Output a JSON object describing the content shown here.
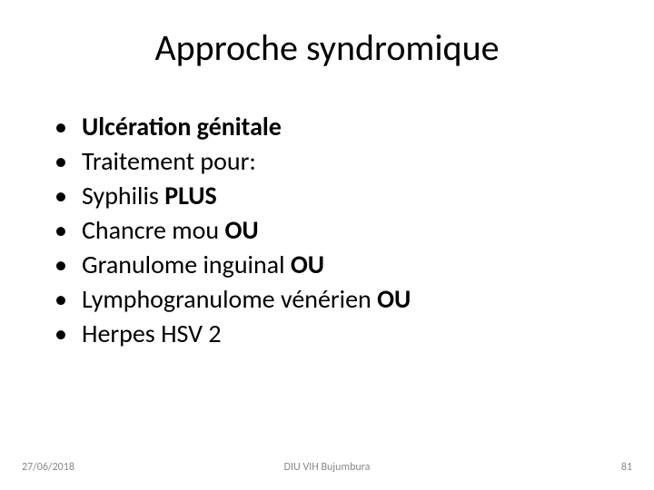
{
  "title": "Approche syndromique",
  "bullets": [
    {
      "plain": "",
      "bold": "Ulcération génitale"
    },
    {
      "plain": "Traitement pour:",
      "bold": ""
    },
    {
      "plain": "Syphilis ",
      "bold": "PLUS"
    },
    {
      "plain": "Chancre mou ",
      "bold": "OU"
    },
    {
      "plain": "Granulome inguinal ",
      "bold": "OU"
    },
    {
      "plain": "Lymphogranulome vénérien ",
      "bold": "OU"
    },
    {
      "plain": "Herpes HSV 2",
      "bold": ""
    }
  ],
  "footer": {
    "date": "27/06/2018",
    "center": "DIU VIH Bujumbura",
    "page": "81"
  },
  "colors": {
    "background": "#ffffff",
    "text": "#000000",
    "footer_text": "#8a8a8a"
  },
  "typography": {
    "title_fontsize": 40,
    "bullet_fontsize": 28,
    "footer_fontsize": 12,
    "font_family": "Calibri"
  }
}
